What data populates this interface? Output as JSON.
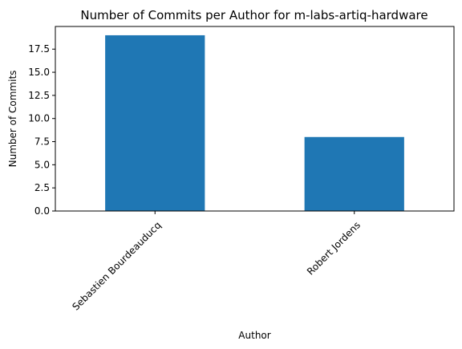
{
  "chart_data": {
    "type": "bar",
    "title": "Number of Commits per Author for m-labs-artiq-hardware",
    "xlabel": "Author",
    "ylabel": "Number of Commits",
    "categories": [
      "Sebastien Bourdeauducq",
      "Robert Jordens"
    ],
    "values": [
      19,
      8
    ],
    "ylim": [
      0,
      19.95
    ],
    "yticks": [
      0.0,
      2.5,
      5.0,
      7.5,
      10.0,
      12.5,
      15.0,
      17.5
    ],
    "ytick_labels": [
      "0.0",
      "2.5",
      "5.0",
      "7.5",
      "10.0",
      "12.5",
      "15.0",
      "17.5"
    ],
    "bar_color": "#1f77b4",
    "grid": false,
    "legend": "none"
  }
}
